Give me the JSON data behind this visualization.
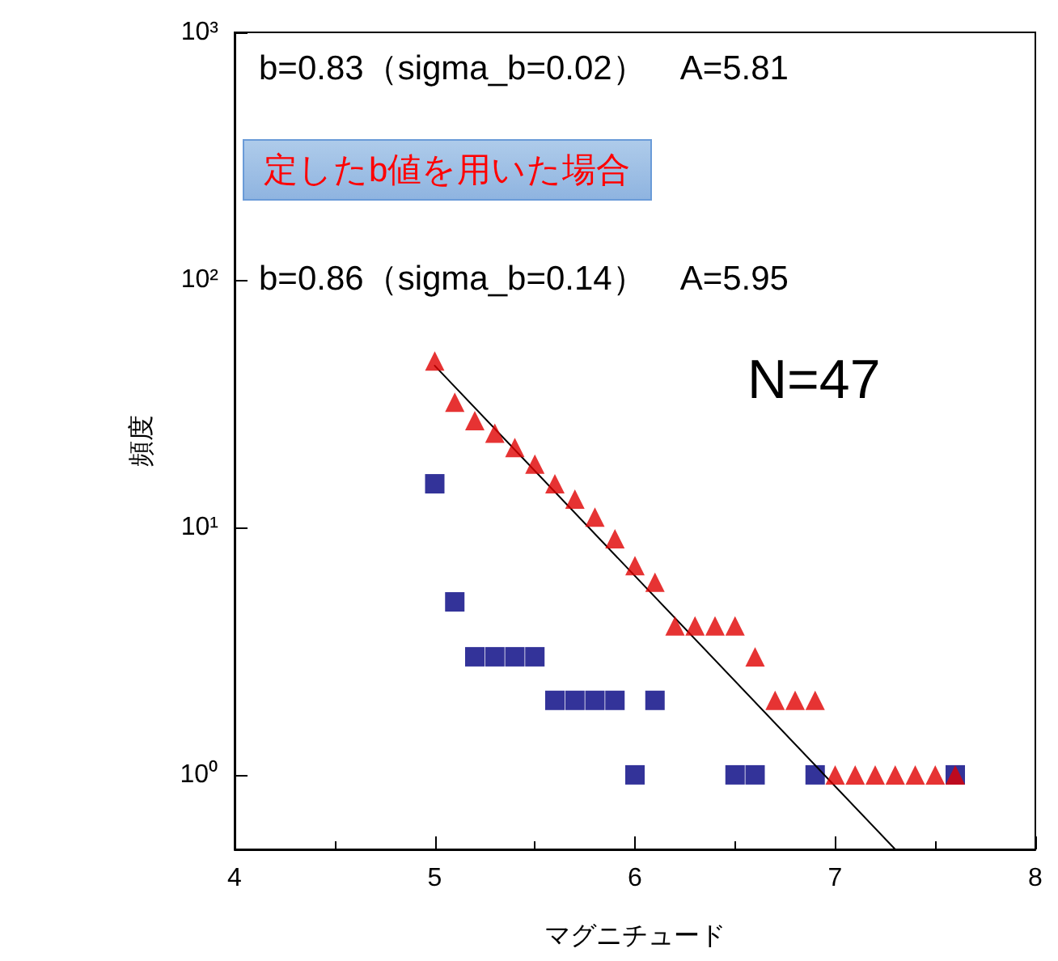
{
  "chart_data": {
    "type": "scatter",
    "xlabel": "マグニチュード",
    "ylabel": "頻度",
    "annotations": [
      "b=0.83（sigma_b=0.02）　A=5.81",
      "定したb値を用いた場合",
      "b=0.86（sigma_b=0.14）　A=5.95",
      "N=47"
    ],
    "log": "y",
    "xlim": [
      4,
      8
    ],
    "xticks": [
      4,
      5,
      6,
      7,
      8
    ],
    "ylim": [
      0.5,
      1000
    ],
    "yticks": [
      {
        "value": 1,
        "label": "10⁰"
      },
      {
        "value": 10,
        "label": "10¹"
      },
      {
        "value": 100,
        "label": "10²"
      },
      {
        "value": 1000,
        "label": "10³"
      }
    ],
    "grid": false,
    "series": [
      {
        "color": "#e00000",
        "marker": "triangle",
        "x": [
          5.0,
          5.1,
          5.2,
          5.3,
          5.4,
          5.5,
          5.6,
          5.7,
          5.8,
          5.9,
          6.0,
          6.1,
          6.2,
          6.3,
          6.4,
          6.5,
          6.6,
          6.7,
          6.8,
          6.9,
          7.0,
          7.1,
          7.2,
          7.3,
          7.4,
          7.5,
          7.6
        ],
        "values": [
          47,
          32,
          27,
          24,
          21,
          18,
          15,
          13,
          11,
          9,
          7,
          6,
          4,
          4,
          4,
          4,
          3,
          2,
          2,
          2,
          1,
          1,
          1,
          1,
          1,
          1,
          1
        ]
      },
      {
        "color": "#000080",
        "marker": "square",
        "x": [
          5.0,
          5.1,
          5.2,
          5.3,
          5.4,
          5.5,
          5.6,
          5.7,
          5.8,
          5.9,
          6.0,
          6.1,
          6.5,
          6.6,
          6.9,
          7.6
        ],
        "values": [
          15,
          5,
          3,
          3,
          3,
          3,
          2,
          2,
          2,
          2,
          1,
          2,
          1,
          1,
          1,
          1
        ]
      },
      {
        "type": "line",
        "color": "#000000",
        "marker": "none",
        "x": [
          5.0,
          7.3
        ],
        "values": [
          45,
          0.5
        ]
      }
    ]
  }
}
